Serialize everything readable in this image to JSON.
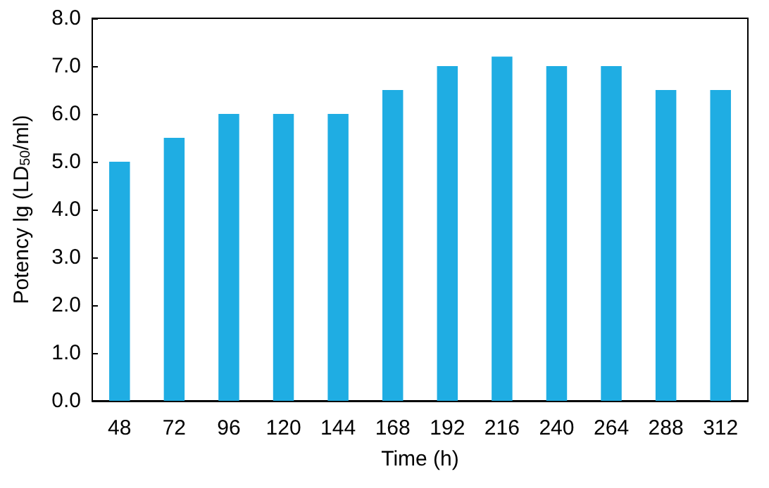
{
  "chart_data": {
    "type": "bar",
    "xlabel": "Time (h)",
    "ylabel": "Potency lg (LD$_{50}$/ml)",
    "categories": [
      "48",
      "72",
      "96",
      "120",
      "144",
      "168",
      "192",
      "216",
      "240",
      "264",
      "288",
      "312"
    ],
    "values": [
      5.0,
      5.5,
      6.0,
      6.0,
      6.0,
      6.5,
      7.0,
      7.2,
      7.0,
      7.0,
      6.5,
      6.5
    ],
    "color": "#1fade3",
    "ylim": [
      0,
      8
    ],
    "yticks": [
      {
        "value": 0,
        "label": "0.0"
      },
      {
        "value": 1,
        "label": "1.0"
      },
      {
        "value": 2,
        "label": "2.0"
      },
      {
        "value": 3,
        "label": "3.0"
      },
      {
        "value": 4,
        "label": "4.0"
      },
      {
        "value": 5,
        "label": "5.0"
      },
      {
        "value": 6,
        "label": "6.0"
      },
      {
        "value": 7,
        "label": "7.0"
      },
      {
        "value": 8,
        "label": "8.0"
      }
    ],
    "grid": false
  }
}
